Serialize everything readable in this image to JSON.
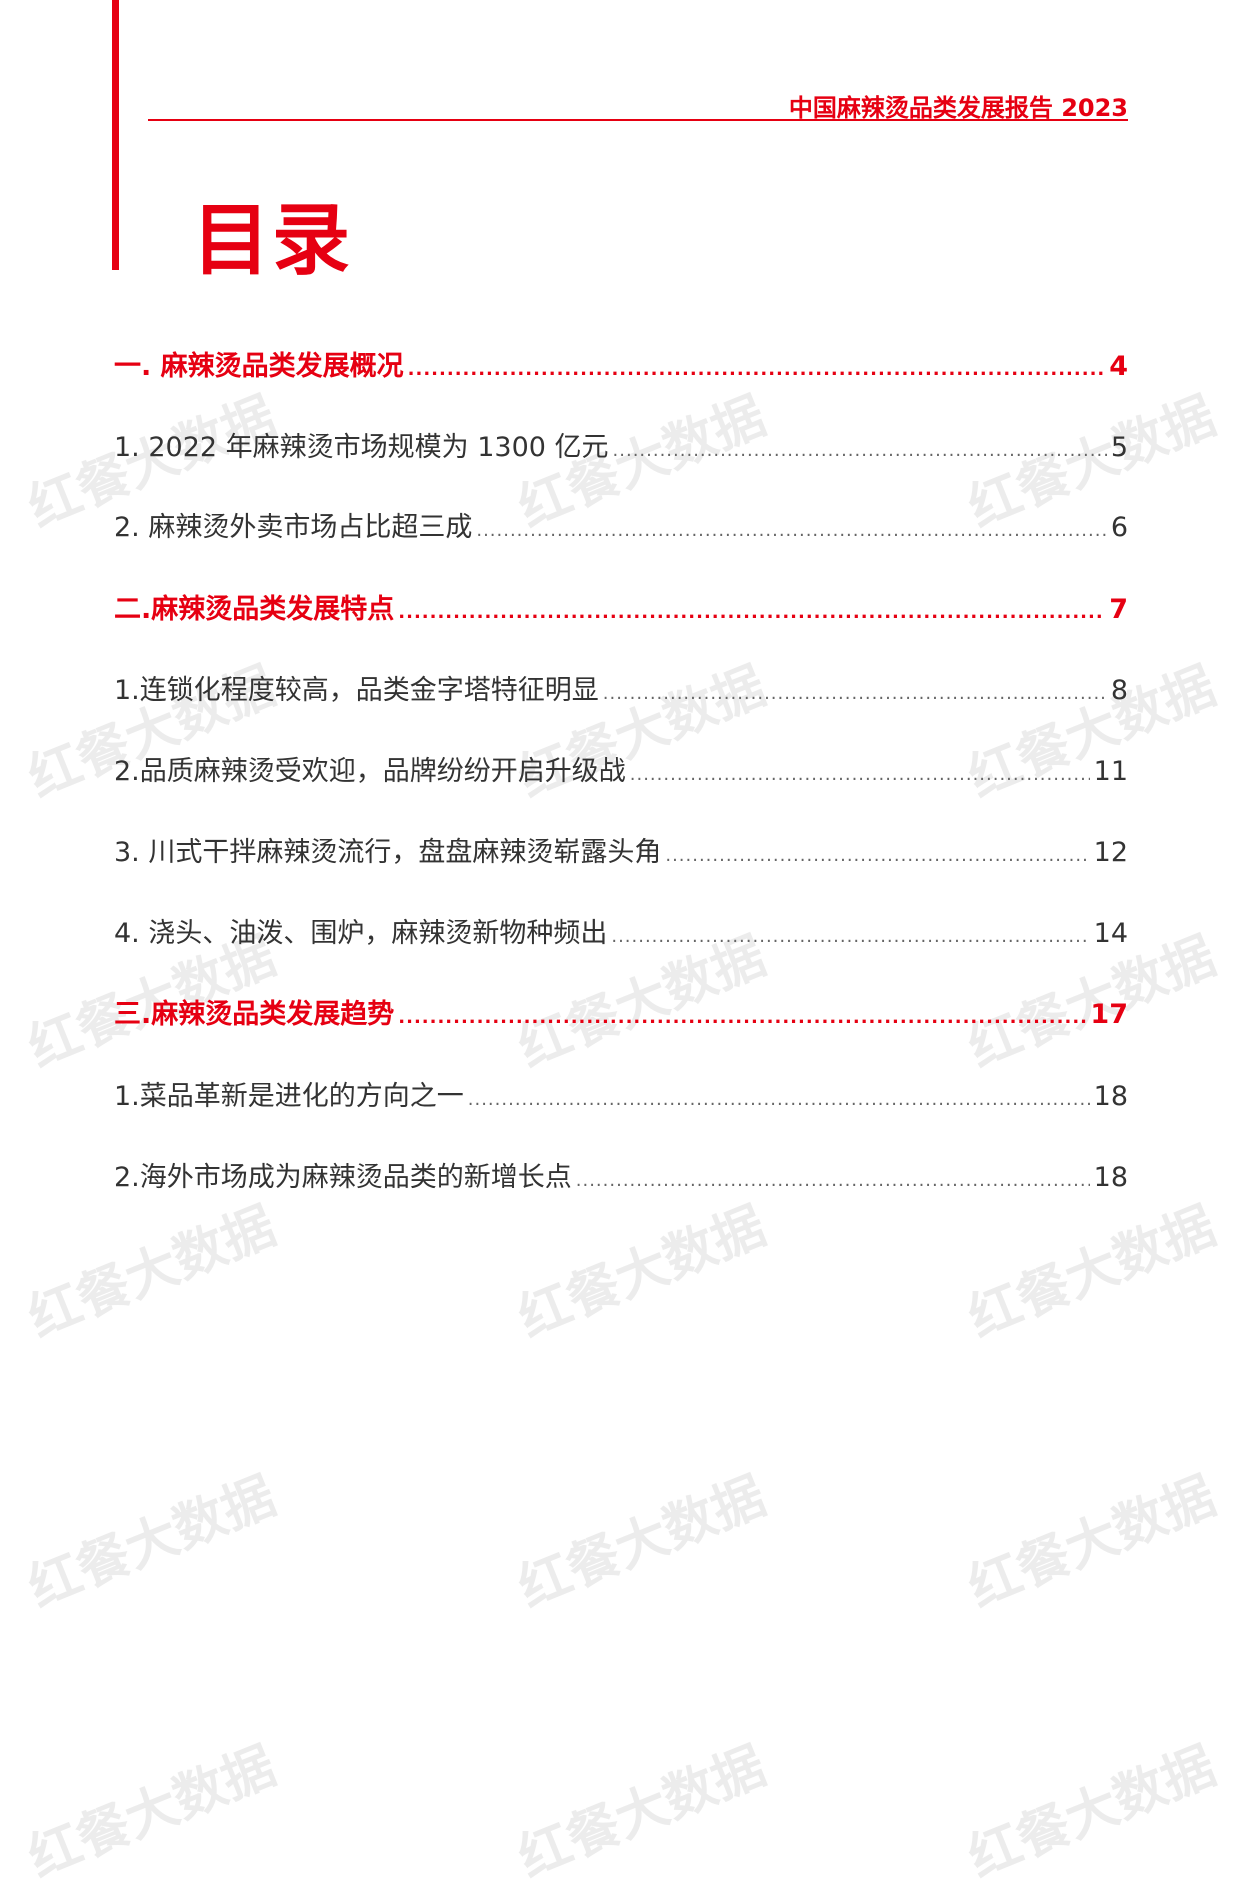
{
  "header": {
    "report_title": "中国麻辣烫品类发展报告 2023"
  },
  "page_title": "目录",
  "watermark": "红餐大数据",
  "toc": [
    {
      "label": "一. 麻辣烫品类发展概况",
      "page": "4",
      "section": true
    },
    {
      "label": "1. 2022 年麻辣烫市场规模为 1300 亿元",
      "page": "5",
      "section": false
    },
    {
      "label": "2. 麻辣烫外卖市场占比超三成",
      "page": "6",
      "section": false
    },
    {
      "label": "二.麻辣烫品类发展特点",
      "page": "7",
      "section": true
    },
    {
      "label": "1.连锁化程度较高，品类金字塔特征明显",
      "page": "8",
      "section": false
    },
    {
      "label": "2.品质麻辣烫受欢迎，品牌纷纷开启升级战",
      "page": "11",
      "section": false
    },
    {
      "label": "3. 川式干拌麻辣烫流行，盘盘麻辣烫崭露头角",
      "page": "12",
      "section": false
    },
    {
      "label": "4. 浇头、油泼、围炉，麻辣烫新物种频出",
      "page": "14",
      "section": false
    },
    {
      "label": "三.麻辣烫品类发展趋势",
      "page": "17",
      "section": true
    },
    {
      "label": "1.菜品革新是进化的方向之一",
      "page": "18",
      "section": false
    },
    {
      "label": "2.海外市场成为麻辣烫品类的新增长点",
      "page": "18",
      "section": false
    }
  ],
  "colors": {
    "accent": "#e60012",
    "text": "#333333"
  }
}
